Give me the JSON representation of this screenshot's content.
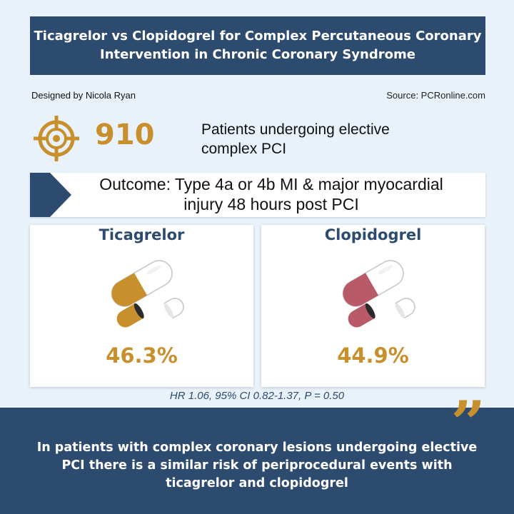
{
  "header": {
    "title_line1": "Ticagrelor vs Clopidogrel for Complex Percutaneous Coronary",
    "title_line2": "Intervention in Chronic Coronary Syndrome"
  },
  "credits": {
    "designer": "Designed by Nicola Ryan",
    "source": "Source: PCRonline.com"
  },
  "population": {
    "count": "910",
    "desc_line1": "Patients undergoing elective",
    "desc_line2": "complex PCI"
  },
  "outcome": {
    "line1": "Outcome: Type 4a or 4b MI & major myocardial",
    "line2": "injury 48 hours post PCI"
  },
  "arms": [
    {
      "name": "Ticagrelor",
      "value": "46.3%",
      "color": "#c8902c",
      "icon": "capsule-icon"
    },
    {
      "name": "Clopidogrel",
      "value": "44.9%",
      "color": "#b85a68",
      "icon": "capsule-icon"
    }
  ],
  "stats": "HR 1.06, 95% CI 0.82-1.37, P = 0.50",
  "conclusion": {
    "line1": "In patients with complex coronary lesions undergoing elective",
    "line2": "PCI there is a similar risk of periprocedural events with",
    "line3": "ticagrelor and clopidogrel"
  },
  "colors": {
    "accent": "#c8902c",
    "navy": "#2d4b6e",
    "background": "#e9f1fa"
  },
  "icons": {
    "target": "target-icon",
    "arrow": "chevron-right-icon",
    "quote": "quote-icon"
  }
}
